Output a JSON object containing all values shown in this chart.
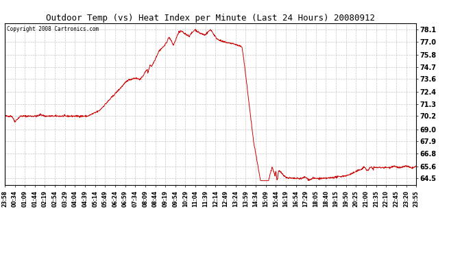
{
  "title": "Outdoor Temp (vs) Heat Index per Minute (Last 24 Hours) 20080912",
  "copyright": "Copyright 2008 Cartronics.com",
  "line_color": "#cc0000",
  "background_color": "#ffffff",
  "plot_bg_color": "#ffffff",
  "grid_color": "#c0c0c0",
  "yticks": [
    64.5,
    65.6,
    66.8,
    67.9,
    69.0,
    70.2,
    71.3,
    72.4,
    73.6,
    74.7,
    75.8,
    77.0,
    78.1
  ],
  "ylim": [
    63.9,
    78.7
  ],
  "xtick_labels": [
    "23:58",
    "00:34",
    "01:09",
    "01:44",
    "02:19",
    "02:54",
    "03:29",
    "04:04",
    "04:39",
    "05:14",
    "05:49",
    "06:24",
    "06:59",
    "07:34",
    "08:09",
    "08:44",
    "09:19",
    "09:54",
    "10:29",
    "11:04",
    "11:39",
    "12:14",
    "12:49",
    "13:24",
    "13:59",
    "14:34",
    "15:09",
    "15:44",
    "16:19",
    "16:54",
    "17:29",
    "18:05",
    "18:40",
    "19:15",
    "19:50",
    "20:25",
    "21:00",
    "21:35",
    "22:10",
    "22:45",
    "23:20",
    "23:55"
  ],
  "n_points": 1440
}
